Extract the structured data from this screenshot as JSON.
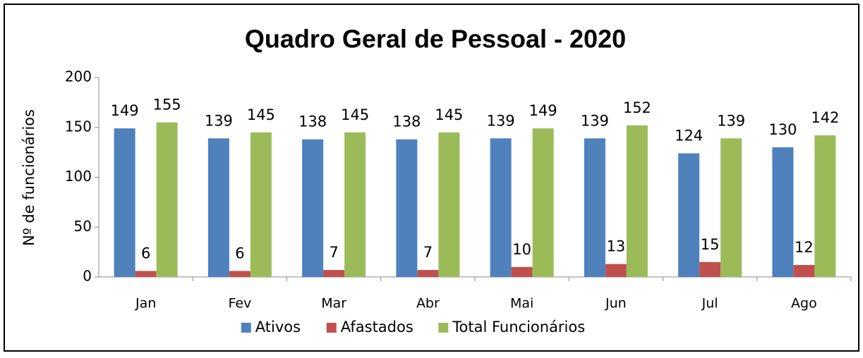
{
  "chart_data": {
    "type": "bar",
    "title": "Quadro Geral de Pessoal - 2020",
    "y_label": "Nº de funcionários",
    "categories": [
      "Jan",
      "Fev",
      "Mar",
      "Abr",
      "Mai",
      "Jun",
      "Jul",
      "Ago"
    ],
    "series": [
      {
        "name": "Ativos",
        "color": "#4f81bd",
        "values": [
          149,
          139,
          138,
          138,
          139,
          139,
          124,
          130
        ]
      },
      {
        "name": "Afastados",
        "color": "#c0504d",
        "values": [
          6,
          6,
          7,
          7,
          10,
          13,
          15,
          12
        ]
      },
      {
        "name": "Total Funcionários",
        "color": "#9bbb59",
        "values": [
          155,
          145,
          145,
          145,
          149,
          152,
          139,
          142
        ]
      }
    ],
    "ylim": [
      0,
      200
    ],
    "yticks": [
      0,
      50,
      100,
      150,
      200
    ],
    "grid": false,
    "legend": "bottom"
  }
}
